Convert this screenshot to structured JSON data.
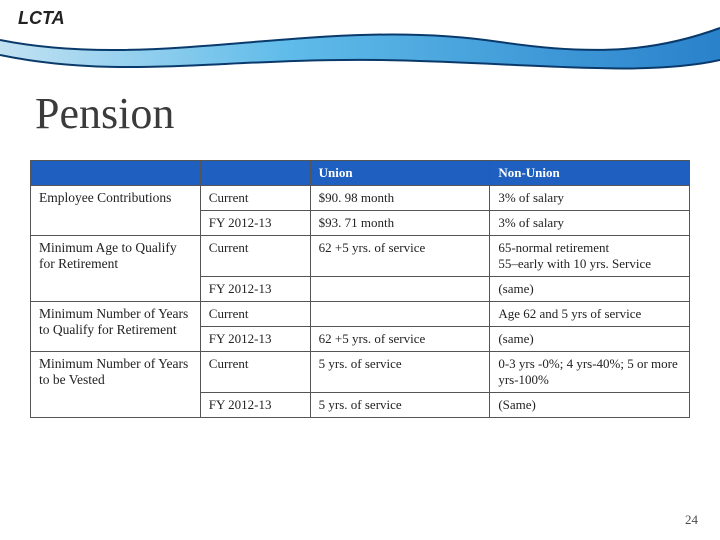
{
  "header": {
    "logo": "LCTA",
    "title": "Pension",
    "page_number": "24"
  },
  "wave": {
    "line_color": "#0a3a6b",
    "gradient_light": "#bfe0f2",
    "gradient_mid": "#57b8e8",
    "gradient_dark": "#1e7bc8"
  },
  "table": {
    "header_bg": "#1f5fbf",
    "header_fg": "#ffffff",
    "border_color": "#555555",
    "columns": [
      "",
      "",
      "Union",
      "Non-Union"
    ],
    "groups": [
      {
        "label": "Employee Contributions",
        "rows": [
          {
            "period": "Current",
            "union": "$90. 98 month",
            "nonunion": "3% of salary"
          },
          {
            "period": "FY 2012-13",
            "union": "$93. 71 month",
            "nonunion": "3% of salary"
          }
        ]
      },
      {
        "label": "Minimum Age to Qualify for Retirement",
        "rows": [
          {
            "period": "Current",
            "union": "62 +5 yrs. of service",
            "nonunion": "65-normal retirement\n55–early with 10 yrs. Service"
          },
          {
            "period": "FY 2012-13",
            "union": "",
            "nonunion": "(same)"
          }
        ]
      },
      {
        "label": "Minimum Number of Years to Qualify for Retirement",
        "rows": [
          {
            "period": "Current",
            "union": "",
            "nonunion": "Age 62 and 5 yrs of service"
          },
          {
            "period": "FY 2012-13",
            "union": "62 +5 yrs. of service",
            "nonunion": "(same)"
          }
        ]
      },
      {
        "label": "Minimum Number of Years to be Vested",
        "rows": [
          {
            "period": "Current",
            "union": "5 yrs. of service",
            "nonunion": "0-3 yrs -0%; 4 yrs-40%; 5 or more yrs-100%"
          },
          {
            "period": "FY 2012-13",
            "union": "5 yrs. of service",
            "nonunion": "(Same)"
          }
        ]
      }
    ]
  }
}
